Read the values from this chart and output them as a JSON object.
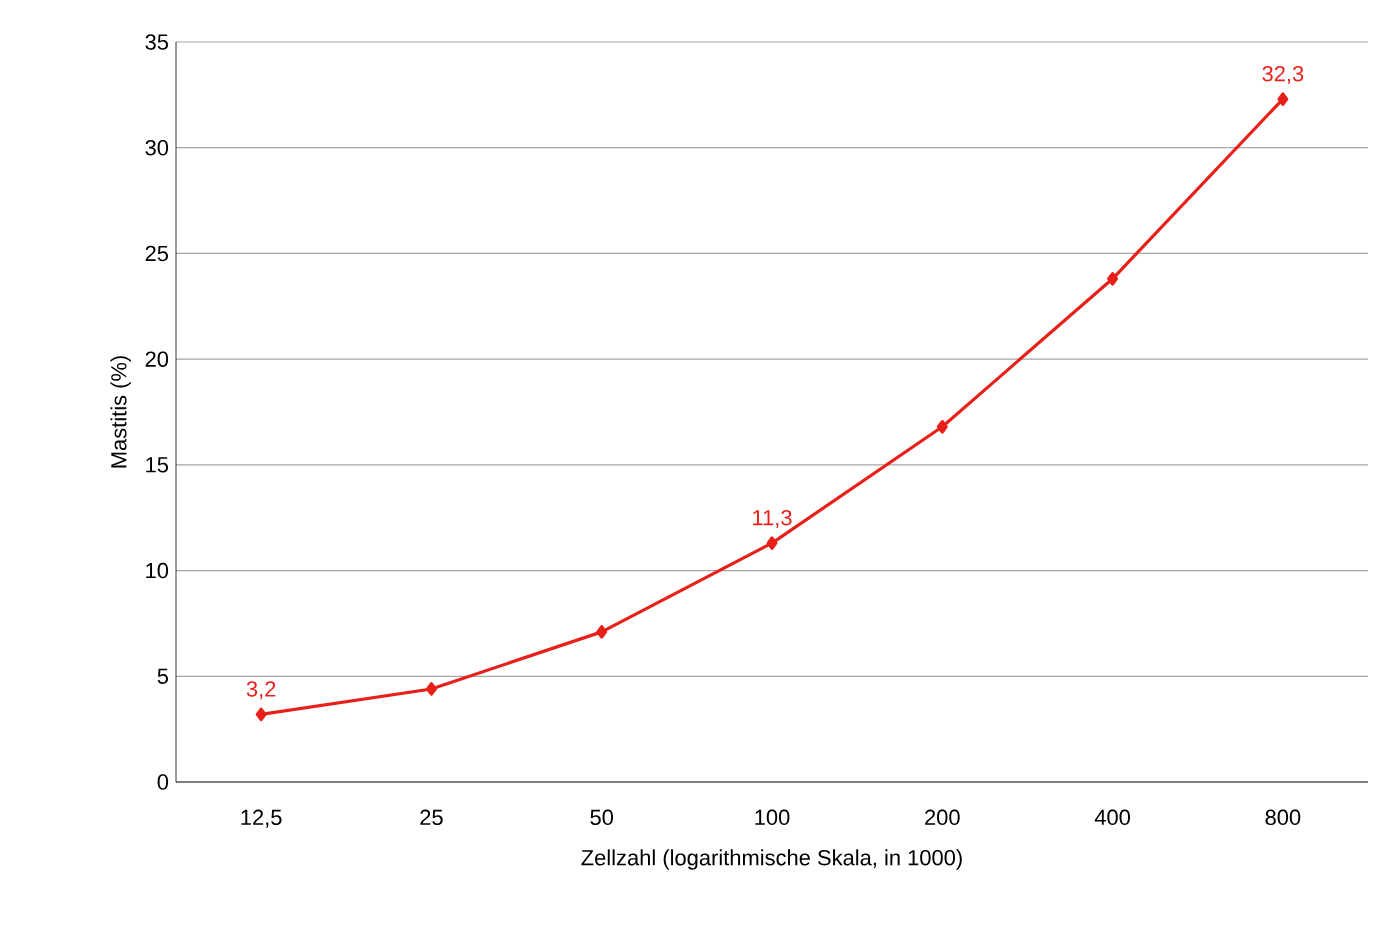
{
  "chart_data": {
    "type": "line",
    "xlabel": "Zellzahl (logarithmische Skala, in 1000)",
    "ylabel": "Mastitis (%)",
    "categories": [
      "12,5",
      "25",
      "50",
      "100",
      "200",
      "400",
      "800"
    ],
    "series": [
      {
        "color": "#e8201a",
        "values": [
          3.2,
          4.4,
          7.1,
          11.3,
          16.8,
          23.8,
          32.3
        ],
        "value_labels": [
          "3,2",
          null,
          null,
          "11,3",
          null,
          null,
          "32,3"
        ]
      }
    ],
    "ylim": [
      0,
      35
    ],
    "yticks": [
      0,
      5,
      10,
      15,
      20,
      25,
      30,
      35
    ],
    "grid": "y",
    "marker": "diamond",
    "line_style": "solid"
  }
}
